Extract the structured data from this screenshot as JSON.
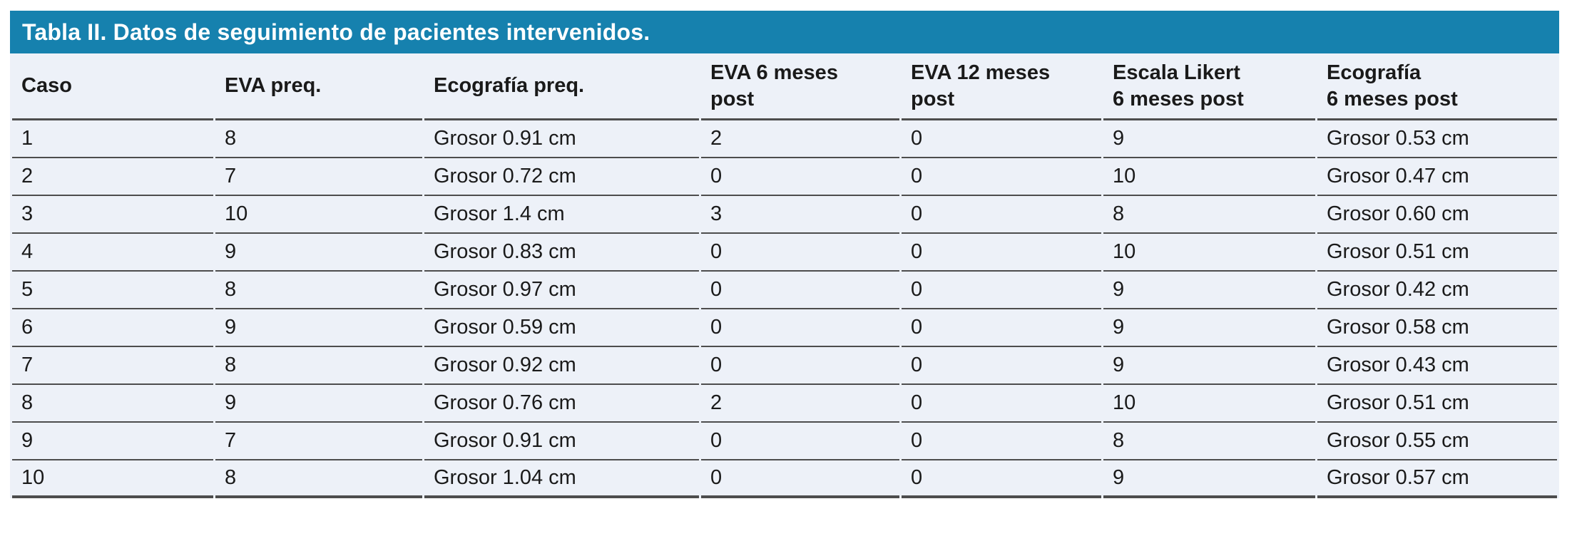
{
  "colors": {
    "accent_teal": "#1681ae",
    "row_background": "#edf1f8",
    "divider": "#4d4d4d",
    "title_text": "#ffffff",
    "body_text": "#1a1a1a"
  },
  "table": {
    "title": "Tabla II. Datos de seguimiento de pacientes intervenidos.",
    "columns": [
      {
        "label": "Caso"
      },
      {
        "label": "EVA preq."
      },
      {
        "label": "Ecografía preq."
      },
      {
        "label": "EVA 6 meses\npost"
      },
      {
        "label": "EVA 12 meses\npost"
      },
      {
        "label": "Escala Likert\n6 meses post"
      },
      {
        "label": "Ecografía\n6 meses post"
      }
    ],
    "rows": [
      {
        "cells": [
          "1",
          "8",
          "Grosor 0.91 cm",
          "2",
          "0",
          "9",
          "Grosor 0.53 cm"
        ]
      },
      {
        "cells": [
          "2",
          "7",
          "Grosor 0.72 cm",
          "0",
          "0",
          "10",
          "Grosor 0.47 cm"
        ]
      },
      {
        "cells": [
          "3",
          "10",
          "Grosor 1.4 cm",
          "3",
          "0",
          "8",
          "Grosor 0.60 cm"
        ]
      },
      {
        "cells": [
          "4",
          "9",
          "Grosor 0.83 cm",
          "0",
          "0",
          "10",
          "Grosor 0.51 cm"
        ]
      },
      {
        "cells": [
          "5",
          "8",
          "Grosor 0.97 cm",
          "0",
          "0",
          "9",
          "Grosor 0.42 cm"
        ]
      },
      {
        "cells": [
          "6",
          "9",
          "Grosor 0.59 cm",
          "0",
          "0",
          "9",
          "Grosor 0.58 cm"
        ]
      },
      {
        "cells": [
          "7",
          "8",
          "Grosor 0.92 cm",
          "0",
          "0",
          "9",
          "Grosor 0.43 cm"
        ]
      },
      {
        "cells": [
          "8",
          "9",
          "Grosor 0.76 cm",
          "2",
          "0",
          "10",
          "Grosor 0.51 cm"
        ]
      },
      {
        "cells": [
          "9",
          "7",
          "Grosor 0.91 cm",
          "0",
          "0",
          "8",
          "Grosor 0.55 cm"
        ]
      },
      {
        "cells": [
          "10",
          "8",
          "Grosor 1.04 cm",
          "0",
          "0",
          "9",
          "Grosor 0.57 cm"
        ]
      }
    ]
  }
}
